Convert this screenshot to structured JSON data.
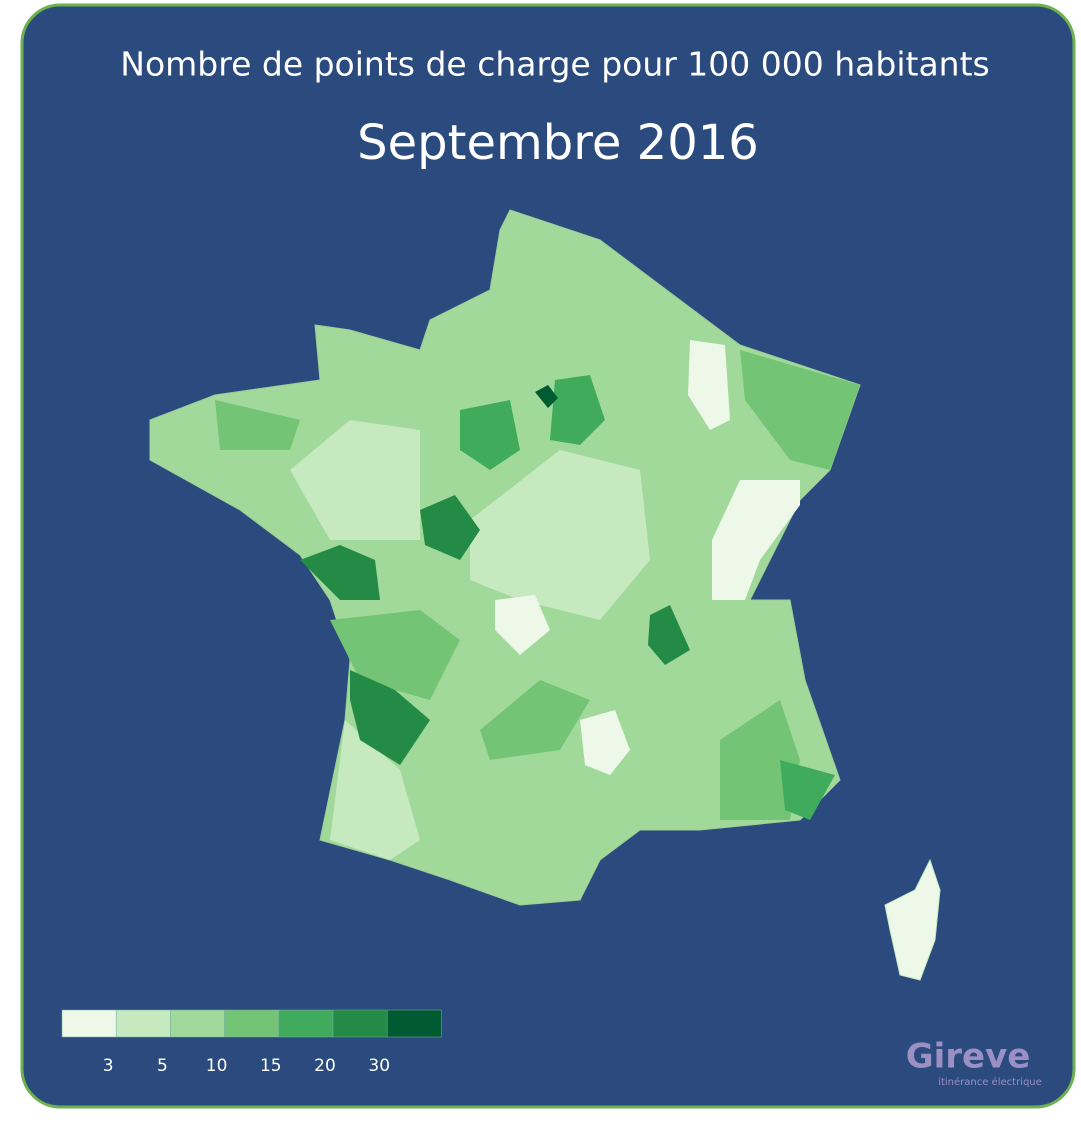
{
  "title": "Nombre de points de charge pour 100 000 habitants",
  "subtitle": "Septembre 2016",
  "legend": {
    "colors": [
      "#edf8e9",
      "#c7e9c0",
      "#a1d99b",
      "#74c476",
      "#41ab5d",
      "#238b45",
      "#005a32"
    ],
    "labels": [
      3,
      5,
      10,
      15,
      20,
      30
    ]
  },
  "brand": {
    "name": "Gireve",
    "tagline": "itinérance électrique"
  }
}
